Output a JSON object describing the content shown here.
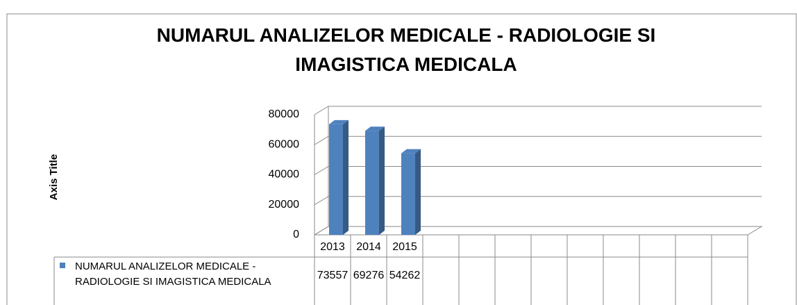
{
  "chart_data": {
    "type": "bar",
    "title": "NUMARUL ANALIZELOR MEDICALE - RADIOLOGIE SI IMAGISTICA MEDICALA",
    "y_axis_label": "Axis Title",
    "categories": [
      "2013",
      "2014",
      "2015",
      null,
      null,
      null,
      null,
      null,
      null,
      null,
      null,
      null
    ],
    "series": [
      {
        "name": "NUMARUL ANALIZELOR MEDICALE - RADIOLOGIE SI IMAGISTICA MEDICALA",
        "color": "#4f81bd",
        "values": [
          73557,
          69276,
          54262,
          null,
          null,
          null,
          null,
          null,
          null,
          null,
          null,
          null
        ]
      }
    ],
    "ylim": [
      0,
      80000
    ],
    "yticks": [
      0,
      20000,
      40000,
      60000,
      80000
    ],
    "grid": true
  }
}
